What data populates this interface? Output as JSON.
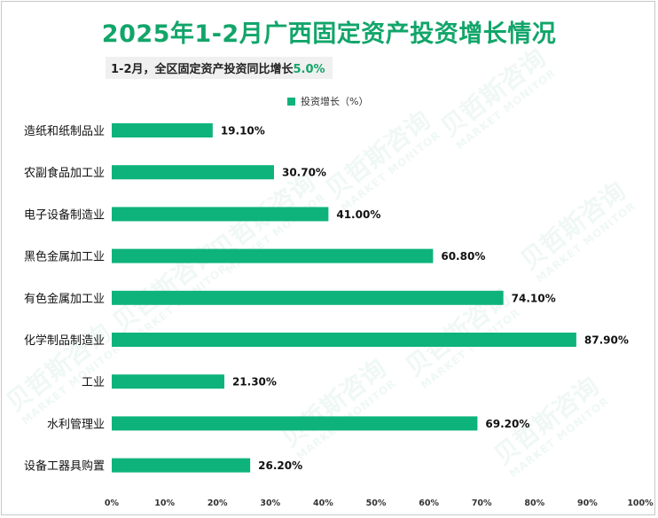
{
  "chart_data": {
    "type": "bar",
    "orientation": "horizontal",
    "title": "2025年1-2月广西固定资产投资增长情况",
    "subtitle": {
      "text": "1-2月，全区固定资产投资同比增长",
      "value": "5.0%"
    },
    "legend": {
      "position": "top",
      "series_label": "投资增长（%）"
    },
    "categories": [
      "造纸和纸制品业",
      "农副食品加工业",
      "电子设备制造业",
      "黑色金属加工业",
      "有色金属加工业",
      "化学制品制造业",
      "工业",
      "水利管理业",
      "设备工器具购置"
    ],
    "series": [
      {
        "name": "投资增长（%）",
        "values": [
          19.1,
          30.7,
          41.0,
          60.8,
          74.1,
          87.9,
          21.3,
          69.2,
          26.2
        ],
        "value_labels": [
          "19.10%",
          "30.70%",
          "41.00%",
          "60.80%",
          "74.10%",
          "87.90%",
          "21.30%",
          "69.20%",
          "26.20%"
        ],
        "color": "#0eb37b"
      }
    ],
    "xlim": [
      0,
      100
    ],
    "xticks": [
      "0%",
      "10%",
      "20%",
      "30%",
      "40%",
      "50%",
      "60%",
      "70%",
      "80%",
      "90%",
      "100%"
    ],
    "grid": false
  },
  "watermark": {
    "text_cn": "贝哲斯咨询",
    "text_en": "MARKET MONITOR"
  },
  "colors": {
    "accent": "#12a56a",
    "bar": "#0eb37b"
  }
}
